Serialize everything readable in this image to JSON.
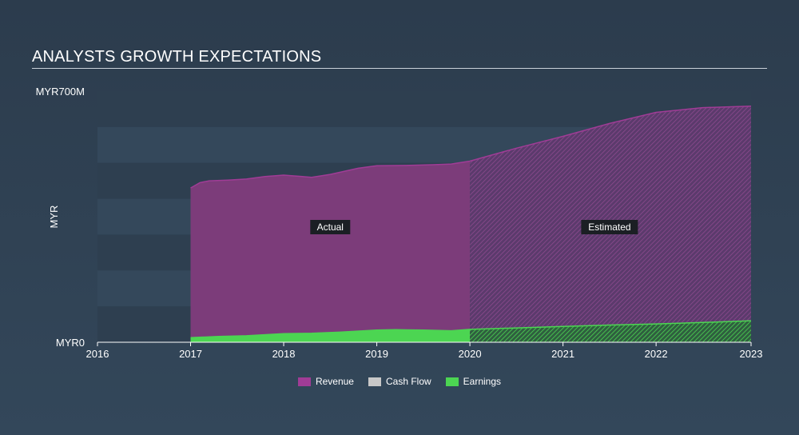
{
  "title": "ANALYSTS GROWTH EXPECTATIONS",
  "chart_data": {
    "type": "area",
    "title": "ANALYSTS GROWTH EXPECTATIONS",
    "ylabel": "MYR",
    "xlabel": "",
    "y_tick_labels": [
      "MYR0",
      "MYR700M"
    ],
    "ylim": [
      0,
      700
    ],
    "xlim": [
      2016,
      2023.02
    ],
    "x_ticks": [
      2016,
      2017,
      2018,
      2019,
      2020,
      2021,
      2022,
      2023
    ],
    "actual_label": "Actual",
    "estimated_label": "Estimated",
    "forecast_start": 2020,
    "series": [
      {
        "name": "Revenue",
        "color": "#a03c96",
        "x": [
          2017.0,
          2017.1,
          2017.2,
          2017.4,
          2017.6,
          2017.8,
          2018.0,
          2018.2,
          2018.3,
          2018.5,
          2018.8,
          2019.0,
          2019.3,
          2019.6,
          2019.8,
          2020.0,
          2020.5,
          2021.0,
          2021.5,
          2022.0,
          2022.5,
          2023.02
        ],
        "values": [
          430,
          445,
          450,
          452,
          455,
          462,
          466,
          462,
          460,
          468,
          485,
          492,
          493,
          495,
          497,
          505,
          541,
          574,
          610,
          641,
          654,
          658
        ]
      },
      {
        "name": "Cash Flow",
        "color": "#c8c8c8",
        "x": [],
        "values": []
      },
      {
        "name": "Earnings",
        "color": "#4cd552",
        "x": [
          2017.0,
          2017.3,
          2017.6,
          2018.0,
          2018.3,
          2018.6,
          2019.0,
          2019.2,
          2019.5,
          2019.8,
          2020.0,
          2020.5,
          2021.0,
          2021.5,
          2022.0,
          2022.5,
          2023.02
        ],
        "values": [
          13,
          16,
          18,
          24,
          25,
          28,
          34,
          35,
          34,
          32,
          36,
          40,
          44,
          48,
          51,
          55,
          60
        ]
      }
    ],
    "legend": [
      {
        "label": "Revenue",
        "color": "#a03c96"
      },
      {
        "label": "Cash Flow",
        "color": "#c8c8c8"
      },
      {
        "label": "Earnings",
        "color": "#4cd552"
      }
    ]
  }
}
